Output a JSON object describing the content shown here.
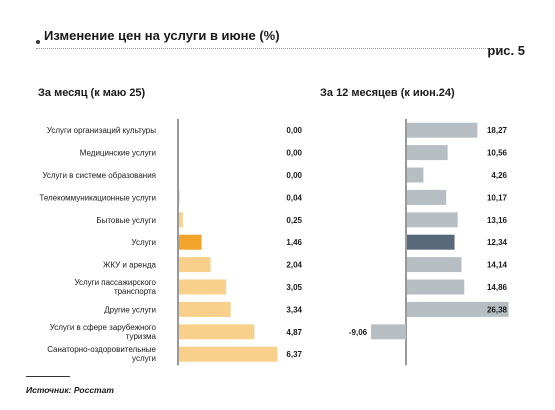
{
  "header": {
    "title": "Изменение цен на услуги в июне (%)",
    "figure_label": "рис. 5"
  },
  "source": "Источник: Росстат",
  "colors": {
    "bar_light_orange": "#f8cf8b",
    "bar_highlight_orange": "#f2a32a",
    "bar_light_gray": "#b6bec4",
    "bar_highlight_gray": "#56687a",
    "axis": "#333333"
  },
  "chart_data": [
    {
      "type": "bar",
      "orientation": "horizontal",
      "title": "За месяц (к маю 25)",
      "categories": [
        [
          "Услуги организаций культуры"
        ],
        [
          "Медицинские услуги"
        ],
        [
          "Услуги в системе образования"
        ],
        [
          "Телекоммуникационные услуги"
        ],
        [
          "Бытовые услуги"
        ],
        [
          "Услуги"
        ],
        [
          "ЖКУ и аренда"
        ],
        [
          "Услуги пассажирского",
          "транспорта"
        ],
        [
          "Другие услуги"
        ],
        [
          "Услуги в сфере зарубежного",
          "туризма"
        ],
        [
          "Санаторно-оздоровительные",
          "услуги"
        ]
      ],
      "values": [
        0.0,
        0.0,
        0.0,
        0.04,
        0.25,
        1.46,
        2.04,
        3.05,
        3.34,
        4.87,
        6.37
      ],
      "value_labels": [
        "0,00",
        "0,00",
        "0,00",
        "0,04",
        "0,25",
        "1,46",
        "2,04",
        "3,05",
        "3,34",
        "4,87",
        "6,37"
      ],
      "highlight_index": 5,
      "xlim": [
        0,
        6.6
      ]
    },
    {
      "type": "bar",
      "orientation": "horizontal",
      "title": "За 12 месяцев (к июн.24)",
      "values": [
        18.27,
        10.56,
        4.26,
        10.17,
        13.16,
        12.34,
        14.14,
        14.86,
        26.38,
        -9.06,
        null
      ],
      "value_labels": [
        "18,27",
        "10,56",
        "4,26",
        "10,17",
        "13,16",
        "12,34",
        "14,14",
        "14,86",
        "26,38",
        "-9,06",
        ""
      ],
      "highlight_index": 5,
      "xlim": [
        -9.5,
        27
      ]
    }
  ]
}
